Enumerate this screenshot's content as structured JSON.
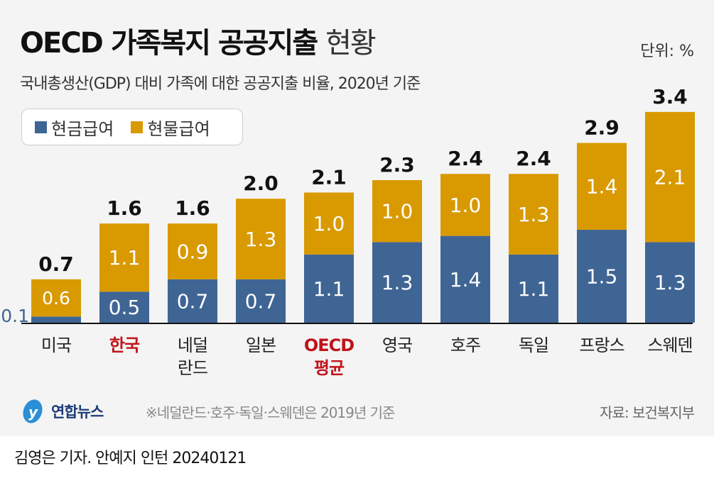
{
  "header": {
    "title_bold": "OECD 가족복지 공공지출",
    "title_light": "현황",
    "unit": "단위: %",
    "subtitle": "국내총생산(GDP) 대비 가족에 대한 공공지출 비율, 2020년 기준"
  },
  "footer": {
    "logo": "연합뉴스",
    "note": "※네덜란드·호주·독일·스웨덴은 2019년 기준",
    "source": "자료: 보건복지부",
    "credit": "김영은 기자. 안예지 인턴  20240121"
  },
  "colors": {
    "cash": "#3f6594",
    "in_kind": "#d89a00",
    "highlight": "#c0141b"
  },
  "chart_data": {
    "type": "bar",
    "stacked": true,
    "categories": [
      "미국",
      "한국",
      "네덜란드",
      "일본",
      "OECD 평균",
      "영국",
      "호주",
      "독일",
      "프랑스",
      "스웨덴"
    ],
    "highlighted": [
      "한국",
      "OECD 평균"
    ],
    "series": [
      {
        "name": "현금급여",
        "values": [
          0.1,
          0.5,
          0.7,
          0.7,
          1.1,
          1.3,
          1.4,
          1.1,
          1.5,
          1.3
        ]
      },
      {
        "name": "현물급여",
        "values": [
          0.6,
          1.1,
          0.9,
          1.3,
          1.0,
          1.0,
          1.0,
          1.3,
          1.4,
          2.1
        ]
      }
    ],
    "totals": [
      "0.7",
      "1.6",
      "1.6",
      "2.0",
      "2.1",
      "2.3",
      "2.4",
      "2.4",
      "2.9",
      "3.4"
    ],
    "legend": "top-left",
    "grid": false
  }
}
